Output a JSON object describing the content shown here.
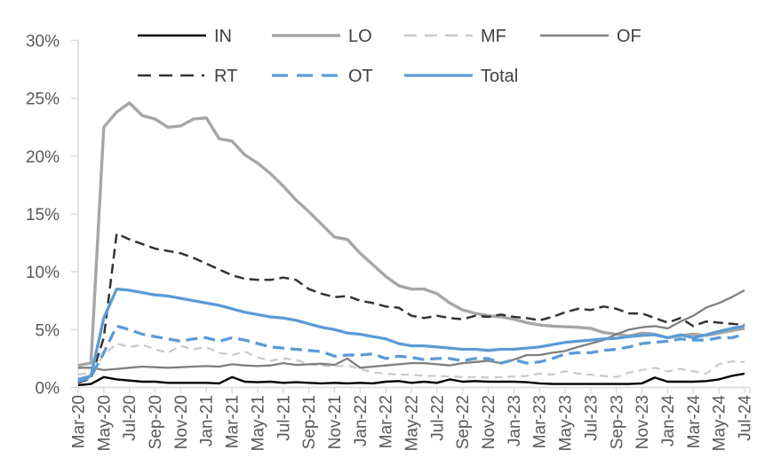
{
  "chart_data": {
    "type": "line",
    "title": "",
    "xlabel": "",
    "ylabel": "",
    "grid": false,
    "x": [
      "Mar-20",
      "Apr-20",
      "May-20",
      "Jun-20",
      "Jul-20",
      "Aug-20",
      "Sep-20",
      "Oct-20",
      "Nov-20",
      "Dec-20",
      "Jan-21",
      "Feb-21",
      "Mar-21",
      "Apr-21",
      "May-21",
      "Jun-21",
      "Jul-21",
      "Aug-21",
      "Sep-21",
      "Oct-21",
      "Nov-21",
      "Dec-21",
      "Jan-22",
      "Feb-22",
      "Mar-22",
      "Apr-22",
      "May-22",
      "Jun-22",
      "Jul-22",
      "Aug-22",
      "Sep-22",
      "Oct-22",
      "Nov-22",
      "Dec-22",
      "Jan-23",
      "Feb-23",
      "Mar-23",
      "Apr-23",
      "May-23",
      "Jun-23",
      "Jul-23",
      "Aug-23",
      "Sep-23",
      "Oct-23",
      "Nov-23",
      "Dec-23",
      "Jan-24",
      "Feb-24",
      "Mar-24",
      "Apr-24",
      "May-24",
      "Jun-24",
      "Jul-24"
    ],
    "x_axis": {
      "label_every": 2,
      "shown_labels": [
        "Mar-20",
        "May-20",
        "Jul-20",
        "Sep-20",
        "Nov-20",
        "Jan-21",
        "Mar-21",
        "May-21",
        "Jul-21",
        "Sep-21",
        "Nov-21",
        "Jan-22",
        "Mar-22",
        "May-22",
        "Jul-22",
        "Sep-22",
        "Nov-22",
        "Jan-23",
        "Mar-23",
        "May-23",
        "Jul-23",
        "Sep-23",
        "Nov-23",
        "Jan-24",
        "Mar-24",
        "May-24",
        "Jul-24"
      ]
    },
    "y_axis": {
      "min": 0,
      "max": 30,
      "unit": "%",
      "tick_values": [
        0,
        5,
        10,
        15,
        20,
        25,
        30
      ],
      "tick_labels": [
        "0%",
        "5%",
        "10%",
        "15%",
        "20%",
        "25%",
        "30%"
      ]
    },
    "legend": {
      "position": "top",
      "rows": [
        [
          "IN",
          "LO",
          "MF",
          "OF"
        ],
        [
          "RT",
          "OT",
          "Total"
        ]
      ]
    },
    "colors": {
      "black": "#000000",
      "gray": "#a6a6a6",
      "light_gray": "#c9c9c9",
      "mid_gray": "#7f7f7f",
      "dark": "#333333",
      "blue": "#5b9bd5",
      "axis": "#d9d9d9",
      "axis_text": "#595959",
      "legend_text": "#404040"
    },
    "series": [
      {
        "name": "IN",
        "color": "#000000",
        "style": "solid",
        "width": 2.4,
        "values": [
          0.2,
          0.3,
          0.9,
          0.7,
          0.6,
          0.5,
          0.5,
          0.4,
          0.4,
          0.4,
          0.4,
          0.35,
          0.9,
          0.5,
          0.45,
          0.5,
          0.4,
          0.45,
          0.4,
          0.35,
          0.4,
          0.35,
          0.4,
          0.35,
          0.5,
          0.55,
          0.4,
          0.5,
          0.4,
          0.7,
          0.5,
          0.55,
          0.5,
          0.5,
          0.5,
          0.45,
          0.35,
          0.3,
          0.3,
          0.3,
          0.3,
          0.3,
          0.3,
          0.3,
          0.35,
          0.85,
          0.5,
          0.5,
          0.5,
          0.55,
          0.7,
          1.0,
          1.2
        ]
      },
      {
        "name": "LO",
        "color": "#a6a6a6",
        "style": "solid",
        "width": 3.4,
        "values": [
          1.9,
          2.1,
          22.5,
          23.8,
          24.6,
          23.5,
          23.2,
          22.5,
          22.6,
          23.2,
          23.3,
          21.5,
          21.3,
          20.1,
          19.4,
          18.5,
          17.4,
          16.2,
          15.2,
          14.1,
          13.0,
          12.8,
          11.6,
          10.6,
          9.6,
          8.8,
          8.5,
          8.5,
          8.1,
          7.3,
          6.7,
          6.4,
          6.2,
          6.1,
          5.9,
          5.6,
          5.4,
          5.3,
          5.25,
          5.2,
          5.1,
          4.75,
          4.6,
          4.45,
          4.7,
          4.6,
          4.3,
          4.5,
          4.6,
          4.5,
          4.7,
          4.9,
          5.1
        ]
      },
      {
        "name": "MF",
        "color": "#c9c9c9",
        "style": "dashed",
        "width": 2.2,
        "dash": "9,6",
        "legend_dash": "14,9",
        "values": [
          1.1,
          1.3,
          2.8,
          3.8,
          3.5,
          3.7,
          3.3,
          3.0,
          3.6,
          3.3,
          3.5,
          3.0,
          2.8,
          3.1,
          2.6,
          2.3,
          2.5,
          2.4,
          2.0,
          1.9,
          1.8,
          1.9,
          1.6,
          1.3,
          1.2,
          1.1,
          1.1,
          1.0,
          1.0,
          0.95,
          0.9,
          0.9,
          0.85,
          0.9,
          0.95,
          1.0,
          1.2,
          1.1,
          1.4,
          1.2,
          1.1,
          1.0,
          0.9,
          1.3,
          1.5,
          1.7,
          1.4,
          1.6,
          1.4,
          1.2,
          2.0,
          2.25,
          2.2
        ]
      },
      {
        "name": "OF",
        "color": "#7f7f7f",
        "style": "solid",
        "width": 2.3,
        "values": [
          1.7,
          1.7,
          1.5,
          1.6,
          1.7,
          1.8,
          1.75,
          1.7,
          1.75,
          1.8,
          1.85,
          1.8,
          2.0,
          1.9,
          1.85,
          1.9,
          2.1,
          1.95,
          2.0,
          2.05,
          1.95,
          2.5,
          1.7,
          1.8,
          1.9,
          2.0,
          2.1,
          2.1,
          2.0,
          1.9,
          2.1,
          2.2,
          2.3,
          2.1,
          2.4,
          2.8,
          2.8,
          3.0,
          3.15,
          3.5,
          3.8,
          4.1,
          4.6,
          5.0,
          5.2,
          5.3,
          5.1,
          5.7,
          6.2,
          6.9,
          7.3,
          7.8,
          8.4
        ]
      },
      {
        "name": "RT",
        "color": "#333333",
        "style": "dashed",
        "width": 2.5,
        "dash": "11,6",
        "legend_dash": "15,9,15,9,15,9,3,9",
        "values": [
          0.4,
          0.8,
          4.3,
          13.3,
          12.8,
          12.4,
          12.0,
          11.8,
          11.6,
          11.2,
          10.7,
          10.2,
          9.7,
          9.4,
          9.3,
          9.3,
          9.5,
          9.3,
          8.5,
          8.1,
          7.8,
          7.9,
          7.5,
          7.3,
          7.0,
          6.9,
          6.2,
          6.0,
          6.2,
          6.0,
          5.9,
          6.2,
          6.1,
          6.3,
          6.1,
          6.0,
          5.8,
          6.1,
          6.5,
          6.8,
          6.7,
          7.0,
          6.8,
          6.4,
          6.4,
          6.0,
          5.6,
          6.0,
          5.3,
          5.7,
          5.6,
          5.5,
          5.4
        ]
      },
      {
        "name": "OT",
        "color": "#5b9bd5",
        "style": "dashed",
        "width": 3.3,
        "dash": "13,7",
        "legend_dash": "18,10",
        "values": [
          0.5,
          0.9,
          3.0,
          5.3,
          5.0,
          4.6,
          4.4,
          4.2,
          4.0,
          4.2,
          4.3,
          4.0,
          4.3,
          4.1,
          3.8,
          3.5,
          3.4,
          3.3,
          3.2,
          3.1,
          2.7,
          2.8,
          2.8,
          2.9,
          2.5,
          2.7,
          2.6,
          2.4,
          2.5,
          2.5,
          2.3,
          2.5,
          2.5,
          2.1,
          2.4,
          2.1,
          2.2,
          2.5,
          2.9,
          3.0,
          3.0,
          3.2,
          3.3,
          3.5,
          3.8,
          3.9,
          4.0,
          4.2,
          4.1,
          4.1,
          4.3,
          4.3,
          4.6
        ]
      },
      {
        "name": "Total",
        "color": "#5b9bd5",
        "style": "solid",
        "width": 3.3,
        "values": [
          0.7,
          1.0,
          6.0,
          8.5,
          8.4,
          8.2,
          8.0,
          7.9,
          7.7,
          7.5,
          7.3,
          7.1,
          6.8,
          6.5,
          6.3,
          6.1,
          6.0,
          5.8,
          5.5,
          5.2,
          5.0,
          4.7,
          4.6,
          4.4,
          4.2,
          3.8,
          3.6,
          3.6,
          3.5,
          3.4,
          3.3,
          3.3,
          3.2,
          3.3,
          3.3,
          3.4,
          3.5,
          3.7,
          3.9,
          4.0,
          4.1,
          4.2,
          4.25,
          4.4,
          4.5,
          4.55,
          4.3,
          4.55,
          4.3,
          4.55,
          4.85,
          5.1,
          5.3
        ]
      }
    ]
  }
}
